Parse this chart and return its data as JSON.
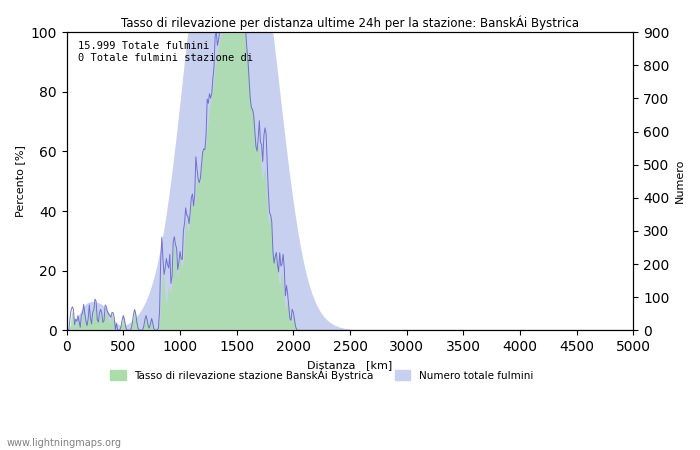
{
  "title": "Tasso di rilevazione per distanza ultime 24h per la stazione: BanskÁi Bystrica",
  "xlabel": "Distanza   [km]",
  "ylabel_left": "Percento [%]",
  "ylabel_right": "Numero",
  "xlim": [
    0,
    5000
  ],
  "ylim_left": [
    0,
    100
  ],
  "ylim_right": [
    0,
    900
  ],
  "annotation_text": "15.999 Totale fulmini\n0 Totale fulmini stazione di",
  "watermark": "www.lightningmaps.org",
  "legend_green": "Tasso di rilevazione stazione BanskÁi Bystrica",
  "legend_blue": "Numero totale fulmini",
  "green_color": "#aaddaa",
  "blue_color": "#c8d0f0",
  "line_color": "#6666cc",
  "background_color": "#ffffff",
  "yticks_left": [
    0,
    20,
    40,
    60,
    80,
    100
  ],
  "yticks_right": [
    0,
    100,
    200,
    300,
    400,
    500,
    600,
    700,
    800,
    900
  ],
  "xticks": [
    0,
    500,
    1000,
    1500,
    2000,
    2500,
    3000,
    3500,
    4000,
    4500,
    5000
  ]
}
